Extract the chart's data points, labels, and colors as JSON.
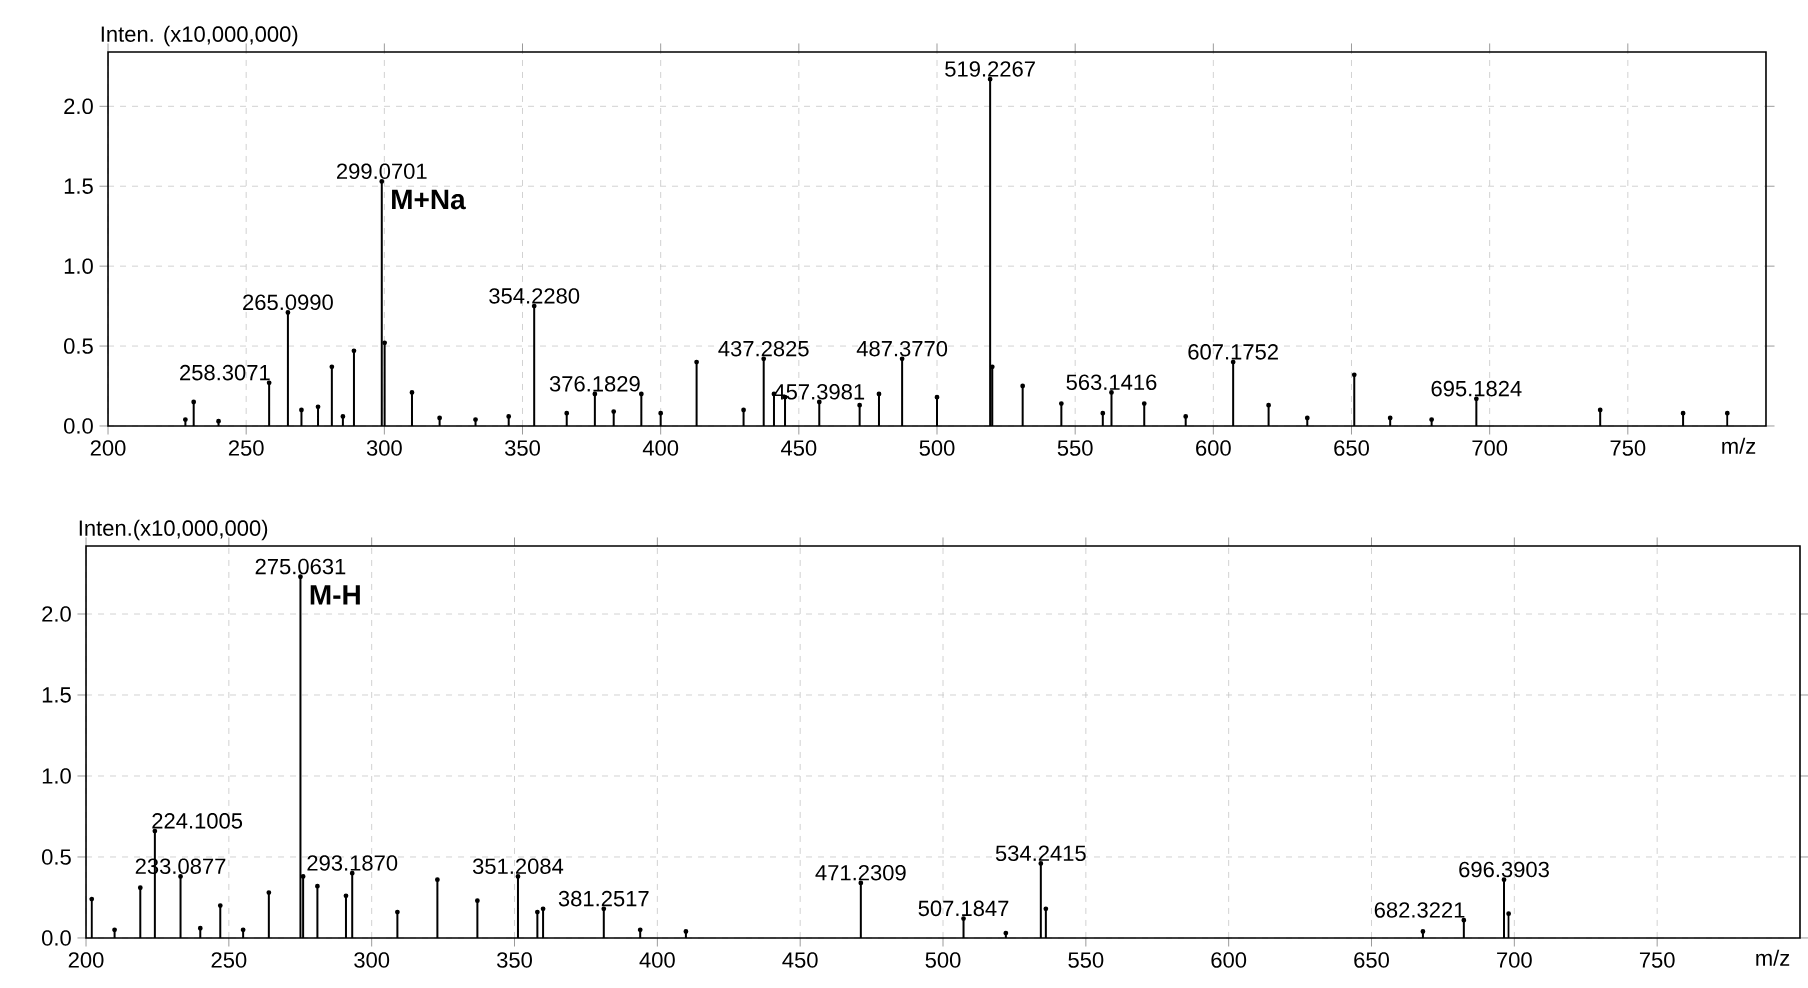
{
  "chart_data": [
    {
      "type": "lollipop",
      "ylabel": "Inten. (x10,000,000)",
      "xlabel": "m/z",
      "grid": true,
      "xlim": [
        200,
        800
      ],
      "ylim": [
        0,
        2.34
      ],
      "xticks": [
        200,
        250,
        300,
        350,
        400,
        450,
        500,
        550,
        600,
        650,
        700,
        750
      ],
      "yticks": [
        {
          "value": 0,
          "label": "0.0"
        },
        {
          "value": 0.5,
          "label": "0.5"
        },
        {
          "value": 1,
          "label": "1.0"
        },
        {
          "value": 1.5,
          "label": "1.5"
        },
        {
          "value": 2,
          "label": "2.0"
        }
      ],
      "series": [
        {
          "color": "#000000",
          "x": [
            228,
            231,
            240,
            258.3071,
            265.099,
            270,
            276,
            281,
            285,
            289,
            299.0701,
            300.1,
            310,
            320,
            333,
            345,
            354.228,
            366,
            376.1829,
            383,
            393,
            400,
            413,
            430,
            437.2825,
            441,
            445,
            457.3981,
            472,
            479,
            487.377,
            500,
            519.2267,
            520,
            531,
            545,
            560,
            563.1416,
            575,
            590,
            607.1752,
            620,
            634,
            651,
            664,
            679,
            695.1824,
            740,
            770,
            786
          ],
          "values": [
            0.04,
            0.15,
            0.03,
            0.27,
            0.71,
            0.1,
            0.12,
            0.37,
            0.06,
            0.47,
            1.53,
            0.52,
            0.21,
            0.05,
            0.04,
            0.06,
            0.75,
            0.08,
            0.2,
            0.09,
            0.2,
            0.08,
            0.4,
            0.1,
            0.42,
            0.2,
            0.18,
            0.15,
            0.13,
            0.2,
            0.42,
            0.18,
            2.17,
            0.37,
            0.25,
            0.14,
            0.08,
            0.21,
            0.14,
            0.06,
            0.4,
            0.13,
            0.05,
            0.32,
            0.05,
            0.04,
            0.17,
            0.1,
            0.08,
            0.08
          ]
        }
      ],
      "annotations": [
        {
          "text": "258.3071",
          "x": 258.3071,
          "y": 0.27
        },
        {
          "text": "265.0990",
          "x": 265.099,
          "y": 0.71
        },
        {
          "text": "299.0701",
          "x": 299.0701,
          "y": 1.53
        },
        {
          "text": "M+Na",
          "x": 299.0701,
          "y": 1.53
        },
        {
          "text": "354.2280",
          "x": 354.228,
          "y": 0.75
        },
        {
          "text": "376.1829",
          "x": 376.1829,
          "y": 0.2
        },
        {
          "text": "437.2825",
          "x": 437.2825,
          "y": 0.42
        },
        {
          "text": "457.3981",
          "x": 457.3981,
          "y": 0.15
        },
        {
          "text": "487.3770",
          "x": 487.377,
          "y": 0.42
        },
        {
          "text": "519.2267",
          "x": 519.2267,
          "y": 2.17
        },
        {
          "text": "563.1416",
          "x": 563.1416,
          "y": 0.21
        },
        {
          "text": "607.1752",
          "x": 607.1752,
          "y": 0.4
        },
        {
          "text": "695.1824",
          "x": 695.1824,
          "y": 0.17
        }
      ]
    },
    {
      "type": "lollipop",
      "ylabel": "Inten.(x10,000,000)",
      "xlabel": "m/z",
      "grid": true,
      "xlim": [
        200,
        800
      ],
      "ylim": [
        0,
        2.42
      ],
      "xticks": [
        200,
        250,
        300,
        350,
        400,
        450,
        500,
        550,
        600,
        650,
        700,
        750
      ],
      "yticks": [
        {
          "value": 0,
          "label": "0.0"
        },
        {
          "value": 0.5,
          "label": "0.5"
        },
        {
          "value": 1,
          "label": "1.0"
        },
        {
          "value": 1.5,
          "label": "1.5"
        },
        {
          "value": 2,
          "label": "2.0"
        }
      ],
      "series": [
        {
          "color": "#000000",
          "x": [
            202,
            210,
            219,
            224.1005,
            233.0877,
            240,
            247,
            255,
            264,
            275.0631,
            276,
            281,
            291,
            293.187,
            309,
            323,
            337,
            351.2084,
            358,
            360,
            381.2517,
            394,
            410,
            471.2309,
            507.1847,
            522,
            534.2415,
            536,
            668,
            682.3221,
            696.3903,
            698
          ],
          "values": [
            0.24,
            0.05,
            0.31,
            0.66,
            0.38,
            0.06,
            0.2,
            0.05,
            0.28,
            2.23,
            0.38,
            0.32,
            0.26,
            0.4,
            0.16,
            0.36,
            0.23,
            0.38,
            0.16,
            0.18,
            0.18,
            0.05,
            0.04,
            0.34,
            0.12,
            0.03,
            0.46,
            0.18,
            0.04,
            0.11,
            0.36,
            0.15
          ]
        }
      ],
      "annotations": [
        {
          "text": "224.1005",
          "x": 224.1005,
          "y": 0.66
        },
        {
          "text": "233.0877",
          "x": 233.0877,
          "y": 0.38
        },
        {
          "text": "275.0631",
          "x": 275.0631,
          "y": 2.23
        },
        {
          "text": "M-H",
          "x": 275.0631,
          "y": 2.23
        },
        {
          "text": "293.1870",
          "x": 293.187,
          "y": 0.4
        },
        {
          "text": "351.2084",
          "x": 351.2084,
          "y": 0.38
        },
        {
          "text": "381.2517",
          "x": 381.2517,
          "y": 0.18
        },
        {
          "text": "471.2309",
          "x": 471.2309,
          "y": 0.34
        },
        {
          "text": "507.1847",
          "x": 507.1847,
          "y": 0.12
        },
        {
          "text": "534.2415",
          "x": 534.2415,
          "y": 0.46
        },
        {
          "text": "682.3221",
          "x": 682.3221,
          "y": 0.11
        },
        {
          "text": "696.3903",
          "x": 696.3903,
          "y": 0.36
        }
      ]
    }
  ]
}
